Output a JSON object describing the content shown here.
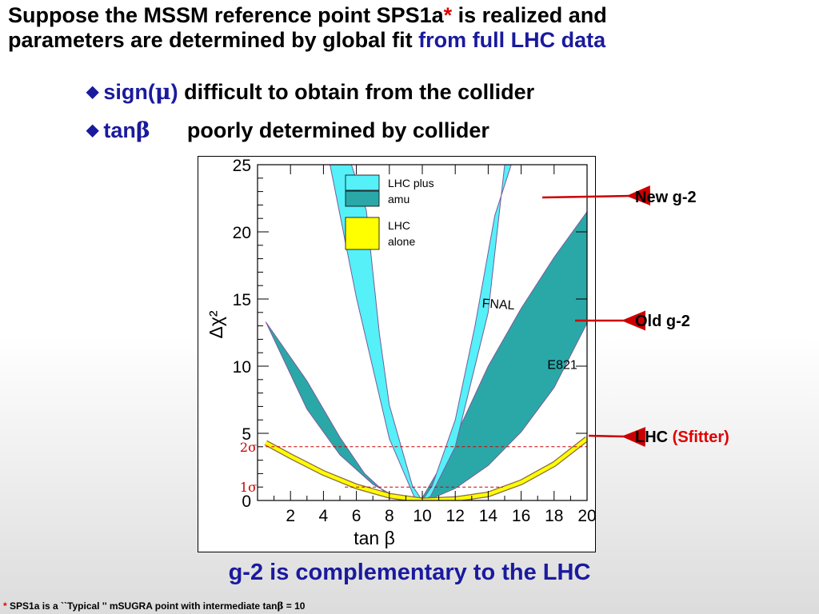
{
  "slide": {
    "title_line1_a": "Suppose the MSSM reference point SPS1a",
    "title_star": "*",
    "title_line1_b": " is realized and",
    "title_line2_a": "parameters are determined by global fit ",
    "title_line2_b": "from full LHC data",
    "bullets": [
      {
        "term": "sign(",
        "symbol": "μ",
        "term_end": ")",
        "text": " difficult to obtain from the collider"
      },
      {
        "term": "tan",
        "symbol": "β",
        "term_end": "",
        "text": "poorly determined by collider"
      }
    ],
    "annotations": {
      "new_g2": "New g-2",
      "old_g2": "Old g-2",
      "lhc": "LHC",
      "lhc_tool": "(Sfitter)"
    },
    "caption": "g-2 is complementary to the LHC",
    "footnote_star": "*",
    "footnote_text": " SPS1a is a ``Typical '' mSUGRA point with intermediate tan",
    "footnote_symbol": "β",
    "footnote_end": " = 10",
    "colors": {
      "title_accent": "#e00000",
      "subtitle_blue": "#1a1a9e",
      "arrow_red": "#cc0000"
    }
  },
  "chart_data": {
    "type": "area",
    "xlabel": "tan β",
    "ylabel": "Δχ²",
    "xlim": [
      0,
      20
    ],
    "ylim": [
      0,
      25
    ],
    "xticks": [
      2,
      4,
      6,
      8,
      10,
      12,
      14,
      16,
      18,
      20
    ],
    "yticks": [
      0,
      5,
      10,
      15,
      20,
      25
    ],
    "legend": [
      {
        "label_lines": [
          "LHC plus",
          "amu"
        ],
        "colors": [
          "#55f0f8",
          "#2aa8a8"
        ]
      },
      {
        "label_lines": [
          "LHC",
          "alone"
        ],
        "colors": [
          "#ffff00"
        ]
      }
    ],
    "band_labels": [
      "FNAL",
      "E821"
    ],
    "sigma_labels": [
      "2σ",
      "1σ"
    ],
    "sigma_levels": [
      4,
      1
    ],
    "series": [
      {
        "name": "FNAL",
        "color": "#55f0f8",
        "lower": {
          "x": [
            4.4,
            6,
            8,
            9.5,
            10,
            10.5,
            12,
            14,
            15,
            18
          ],
          "y": [
            25,
            15.1,
            4.6,
            0.3,
            0,
            0.3,
            4.0,
            14.0,
            25,
            25
          ]
        },
        "upper": {
          "x": [
            4.4,
            5.7,
            6.6,
            7.4,
            8,
            9.4,
            10,
            10.6,
            12,
            13.2,
            14.4,
            15.4,
            16.8,
            18
          ],
          "y": [
            25,
            25,
            21.6,
            12.4,
            7.1,
            1.1,
            0,
            1.1,
            6.0,
            13.0,
            21.2,
            25,
            25,
            25
          ]
        }
      },
      {
        "name": "E821",
        "color": "#2aa8a8",
        "lower": {
          "x": [
            0.5,
            3,
            5,
            7,
            8.5,
            9.5,
            10.5,
            12,
            14,
            16,
            18,
            20
          ],
          "y": [
            13.3,
            6.8,
            3.4,
            1.2,
            0.2,
            0,
            0.1,
            0.9,
            2.6,
            5.1,
            8.4,
            13.2
          ]
        },
        "upper": {
          "x": [
            0.5,
            3,
            5,
            6.5,
            8,
            9,
            10,
            11,
            12,
            14,
            16,
            18,
            20
          ],
          "y": [
            13.3,
            8.9,
            4.7,
            2.0,
            0.3,
            0,
            0.2,
            2.3,
            4.7,
            10.0,
            14.3,
            18.1,
            21.5
          ]
        }
      },
      {
        "name": "LHC alone",
        "color": "#ffff00",
        "x": [
          0.5,
          2,
          4,
          6,
          8,
          10,
          12,
          14,
          16,
          18,
          20
        ],
        "y": [
          4.3,
          3.3,
          2.05,
          1.05,
          0.35,
          0,
          0.1,
          0.45,
          1.35,
          2.7,
          4.6
        ]
      }
    ]
  }
}
